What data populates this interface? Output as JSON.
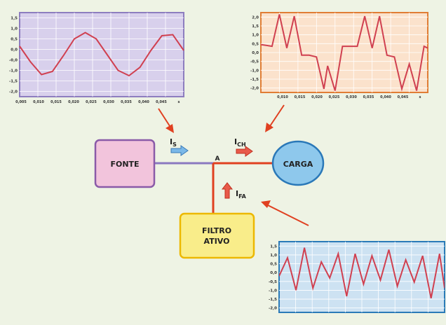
{
  "diagram": {
    "source_label": "FONTE",
    "load_label": "CARGA",
    "filter_label_line1": "FILTRO",
    "filter_label_line2": "ATIVO",
    "node_label": "A",
    "source_current": {
      "main": "I",
      "sub": "S"
    },
    "load_current": {
      "main": "I",
      "sub": "CH"
    },
    "filter_current": {
      "main": "I",
      "sub": "FA"
    }
  },
  "colors": {
    "background": "#eef3e4",
    "source_fill": "#f2c4dc",
    "source_border": "#8a5aa8",
    "load_fill": "#8ec8ec",
    "load_border": "#2a78b8",
    "filter_fill": "#f9ed8a",
    "filter_border": "#ecb800",
    "line_source": "#8a78c0",
    "line_red": "#e04020",
    "arrow_blue": "#7ab8e8",
    "arrow_red": "#e85a4a",
    "wave": "#d04050",
    "panel1_bg": "#d8d0ec",
    "panel1_border": "#8d7dbf",
    "panel2_bg": "#fbe2cc",
    "panel2_border": "#e07d35",
    "panel3_bg": "#cde2f2",
    "panel3_border": "#2a7ab8"
  },
  "chart_data": [
    {
      "type": "line",
      "title": "",
      "xlabel": "s",
      "ylabel": "",
      "xlim": [
        0.005,
        0.05
      ],
      "ylim": [
        -2.0,
        2.0
      ],
      "grid": true,
      "yticks": [
        "1,5",
        "1,0",
        "0,5",
        "0,0",
        "-0,0",
        "-1,0",
        "-1,5",
        "-2,0"
      ],
      "xticks": [
        "0,005",
        "0,010",
        "0,015",
        "0,020",
        "0,025",
        "0,030",
        "0,035",
        "0,040",
        "0,045",
        "s"
      ],
      "series": [
        {
          "x": [
            0.005,
            0.008,
            0.011,
            0.014,
            0.017,
            0.02,
            0.023,
            0.026,
            0.029,
            0.032,
            0.035,
            0.038,
            0.041,
            0.044,
            0.047,
            0.05
          ],
          "y": [
            0.4,
            -0.35,
            -0.95,
            -0.8,
            -0.05,
            0.75,
            1.05,
            0.75,
            0.0,
            -0.75,
            -1.0,
            -0.6,
            0.2,
            0.9,
            0.95,
            0.2
          ]
        }
      ]
    },
    {
      "type": "line",
      "title": "",
      "xlabel": "s",
      "ylabel": "",
      "xlim": [
        0.004,
        0.049
      ],
      "ylim": [
        -2.0,
        2.5
      ],
      "grid": true,
      "yticks": [
        "2,0",
        "1,5",
        "1,0",
        "0,5",
        "0,0",
        "-0,5",
        "-1,0",
        "-1,5",
        "-2,0"
      ],
      "xticks": [
        "0,010",
        "0,015",
        "0,020",
        "0,025",
        "0,030",
        "0,035",
        "0,040",
        "0,045",
        "s"
      ],
      "series": [
        {
          "x": [
            0.004,
            0.007,
            0.009,
            0.011,
            0.013,
            0.015,
            0.017,
            0.019,
            0.021,
            0.022,
            0.024,
            0.026,
            0.028,
            0.03,
            0.032,
            0.034,
            0.036,
            0.038,
            0.04,
            0.042,
            0.044,
            0.046,
            0.048,
            0.049
          ],
          "y": [
            0.7,
            0.6,
            2.4,
            0.5,
            2.3,
            0.1,
            0.1,
            0.0,
            -1.8,
            -0.5,
            -1.9,
            0.6,
            0.6,
            0.6,
            2.3,
            0.5,
            2.3,
            0.1,
            0.0,
            -1.8,
            -0.4,
            -1.9,
            0.6,
            0.5
          ]
        }
      ]
    },
    {
      "type": "line",
      "title": "",
      "xlabel": "",
      "ylabel": "",
      "xlim": [
        0.0,
        0.049
      ],
      "ylim": [
        -2.0,
        1.5
      ],
      "grid": true,
      "yticks": [
        "1,5",
        "1,0",
        "0,5",
        "0,0",
        "-0,5",
        "-1,0",
        "-1,5",
        "-2,0"
      ],
      "xticks": [],
      "series": [
        {
          "x": [
            0.0,
            0.0025,
            0.005,
            0.0075,
            0.01,
            0.0125,
            0.015,
            0.0175,
            0.02,
            0.0225,
            0.025,
            0.0275,
            0.03,
            0.0325,
            0.035,
            0.0375,
            0.04,
            0.0425,
            0.045,
            0.0475,
            0.049
          ],
          "y": [
            -0.2,
            0.7,
            -0.9,
            1.2,
            -0.8,
            0.5,
            -0.3,
            0.9,
            -1.2,
            0.9,
            -0.6,
            0.8,
            -0.4,
            1.1,
            -0.7,
            0.6,
            -0.5,
            0.8,
            -1.3,
            0.9,
            -0.8
          ]
        }
      ]
    }
  ]
}
